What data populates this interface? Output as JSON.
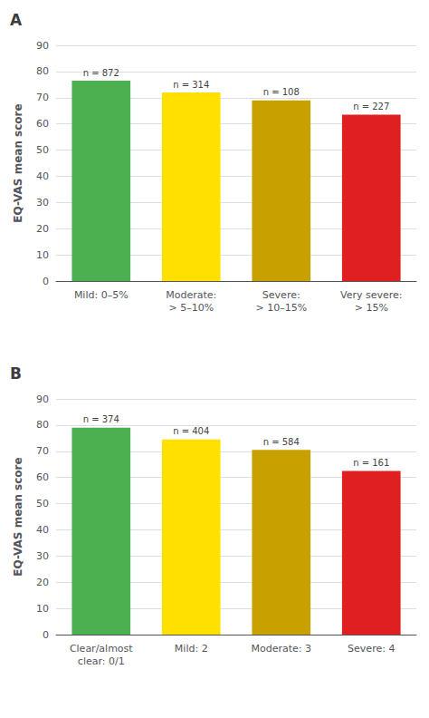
{
  "chart_data": [
    {
      "type": "bar",
      "title": "A",
      "categories": [
        "Mild: 0–5%",
        "Moderate:\n> 5–10%",
        "Severe:\n> 10–15%",
        "Very severe:\n> 15%"
      ],
      "values": [
        76.5,
        72.0,
        69.0,
        63.5
      ],
      "colors": [
        "#4CAF50",
        "#FFE000",
        "#C8A000",
        "#E02020"
      ],
      "annotations": [
        "n = 872",
        "n = 314",
        "n = 108",
        "n = 227"
      ],
      "ylabel": "EQ-VAS mean score",
      "ylim": [
        0,
        90
      ],
      "yticks": [
        0,
        10,
        20,
        30,
        40,
        50,
        60,
        70,
        80,
        90
      ],
      "grid": true
    },
    {
      "type": "bar",
      "title": "B",
      "categories": [
        "Clear/almost\nclear: 0/1",
        "Mild: 2",
        "Moderate: 3",
        "Severe: 4"
      ],
      "values": [
        79.0,
        74.5,
        70.5,
        62.5
      ],
      "colors": [
        "#4CAF50",
        "#FFE000",
        "#C8A000",
        "#E02020"
      ],
      "annotations": [
        "n = 374",
        "n = 404",
        "n = 584",
        "n = 161"
      ],
      "ylabel": "EQ-VAS mean score",
      "ylim": [
        0,
        90
      ],
      "yticks": [
        0,
        10,
        20,
        30,
        40,
        50,
        60,
        70,
        80,
        90
      ],
      "grid": true
    }
  ]
}
